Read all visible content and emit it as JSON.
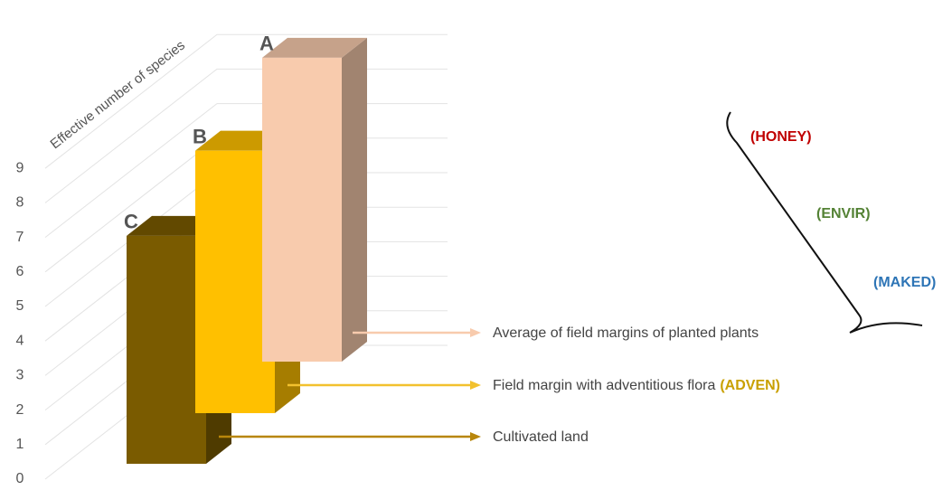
{
  "chart_data": {
    "type": "bar3d",
    "y_label": "Effective number of species",
    "categories": [
      "C",
      "B",
      "A"
    ],
    "values": [
      6.6,
      7.6,
      8.8
    ],
    "colors": [
      "#7a5b00",
      "#ffc000",
      "#f8cbad"
    ],
    "ylim": [
      0,
      9
    ],
    "yticks": [
      0,
      1,
      2,
      3,
      4,
      5,
      6,
      7,
      8,
      9
    ],
    "grid": true,
    "descriptions": [
      "Cultivated land",
      "Field margin with adventitious flora",
      "Average of field margins of planted plants"
    ],
    "description_codes": [
      null,
      "(ADVEN)",
      null
    ],
    "subgroups": [
      "(HONEY)",
      "(ENVIR)",
      "(MAKED)"
    ]
  }
}
